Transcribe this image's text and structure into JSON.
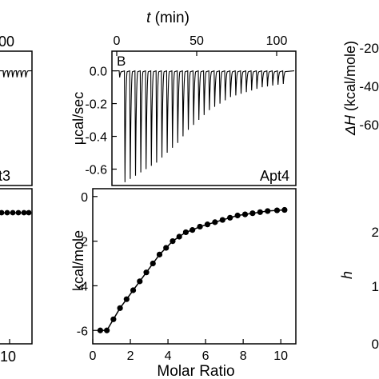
{
  "left_panel": {
    "top_tick_fragment": "00",
    "label_fragment": "t3",
    "bottom_tick_fragment": "10",
    "bottom_tick_fragment_zero": "0",
    "label_color": "#9b1fb5"
  },
  "chart_data": [
    {
      "type": "line",
      "panel": "B",
      "label": "Apt4",
      "label_color": "#9b1fb5",
      "xlabel": "t (min)",
      "x_axis_position": "top",
      "xlim": [
        -3,
        112
      ],
      "xticks": [
        0,
        50,
        100
      ],
      "ylabel": "μcal/sec",
      "ylim": [
        -0.7,
        0.12
      ],
      "yticks": [
        0.0,
        -0.2,
        -0.4,
        -0.6
      ],
      "ytick_labels": [
        "0.0",
        "-0.2",
        "-0.4",
        "-0.6"
      ],
      "baseline": 0.0,
      "injection_interval_min": 3.3,
      "first_injection_min": 1.5,
      "injection_peaks": [
        -0.04,
        -0.68,
        -0.66,
        -0.64,
        -0.62,
        -0.6,
        -0.58,
        -0.56,
        -0.53,
        -0.5,
        -0.47,
        -0.44,
        -0.4,
        -0.36,
        -0.33,
        -0.3,
        -0.27,
        -0.24,
        -0.22,
        -0.2,
        -0.18,
        -0.16,
        -0.15,
        -0.14,
        -0.13,
        -0.12,
        -0.11,
        -0.1,
        -0.095,
        -0.09,
        -0.085,
        -0.08
      ]
    },
    {
      "type": "scatter",
      "xlabel": "Molar Ratio",
      "ylabel": "kcal/mole",
      "xlim": [
        0,
        10.8
      ],
      "ylim": [
        -6.6,
        0.35
      ],
      "xticks": [
        0,
        2,
        4,
        6,
        8,
        10
      ],
      "yticks": [
        0,
        -2,
        -4,
        -6
      ],
      "x": [
        0.4,
        0.75,
        1.1,
        1.45,
        1.8,
        2.15,
        2.5,
        2.85,
        3.2,
        3.55,
        3.9,
        4.25,
        4.6,
        4.95,
        5.3,
        5.7,
        6.1,
        6.5,
        6.9,
        7.3,
        7.7,
        8.1,
        8.5,
        8.9,
        9.3,
        9.8,
        10.2
      ],
      "y": [
        -6.0,
        -6.0,
        -5.5,
        -5.0,
        -4.6,
        -4.2,
        -3.8,
        -3.4,
        -3.0,
        -2.6,
        -2.3,
        -2.0,
        -1.8,
        -1.6,
        -1.5,
        -1.35,
        -1.25,
        -1.15,
        -1.05,
        -0.95,
        -0.85,
        -0.8,
        -0.75,
        -0.7,
        -0.65,
        -0.62,
        -0.6
      ]
    }
  ],
  "right_panel": {
    "ylabel": "ΔH (kcal/mole)",
    "yticks_visible": [
      "-20",
      "-40",
      "-60"
    ],
    "second_label": "h",
    "tick_fragment_a": "2",
    "tick_fragment_b": "1",
    "tick_fragment_c": "0"
  }
}
